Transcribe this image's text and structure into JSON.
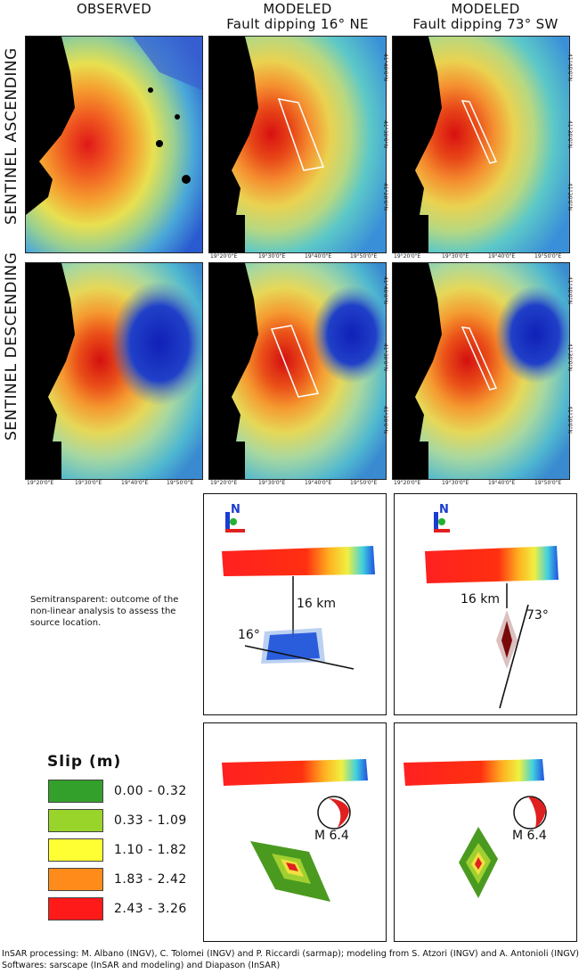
{
  "columns": [
    {
      "line1": "OBSERVED",
      "line2": ""
    },
    {
      "line1": "MODELED",
      "line2": "Fault dipping 16° NE"
    },
    {
      "line1": "MODELED",
      "line2": "Fault dipping 73° SW"
    }
  ],
  "rows": [
    "SENTINEL ASCENDING",
    "SENTINEL DESCENDING"
  ],
  "lon_ticks": [
    "19°20'0\"E",
    "19°30'0\"E",
    "19°40'0\"E",
    "19°50'0\"E"
  ],
  "lat_ticks": [
    "41°40'0\"N",
    "41°30'0\"N",
    "41°20'0\"N"
  ],
  "note": "Semitransparent: outcome of the non-linear analysis to assess the source location.",
  "model_ne": {
    "depth": "16 km",
    "dip": "16°",
    "magnitude": "M 6.4"
  },
  "model_sw": {
    "depth": "16 km",
    "dip": "73°",
    "magnitude": "M 6.4"
  },
  "compass": "N",
  "legend": {
    "title": "Slip (m)",
    "items": [
      {
        "range": "0.00 - 0.32",
        "color": "#33a02c"
      },
      {
        "range": "0.33 - 1.09",
        "color": "#99d42a"
      },
      {
        "range": "1.10 - 1.82",
        "color": "#ffff33"
      },
      {
        "range": "1.83 - 2.42",
        "color": "#ff8c1a"
      },
      {
        "range": "2.43 - 3.26",
        "color": "#ff1a1a"
      }
    ]
  },
  "credits": {
    "line1": "InSAR processing: M. Albano (INGV), C. Tolomei (INGV) and P. Riccardi (sarmap); modeling from S. Atzori (INGV) and A. Antonioli (INGV)",
    "line2": "Softwares: sarscape (InSAR and modeling) and Diapason (InSAR)"
  }
}
